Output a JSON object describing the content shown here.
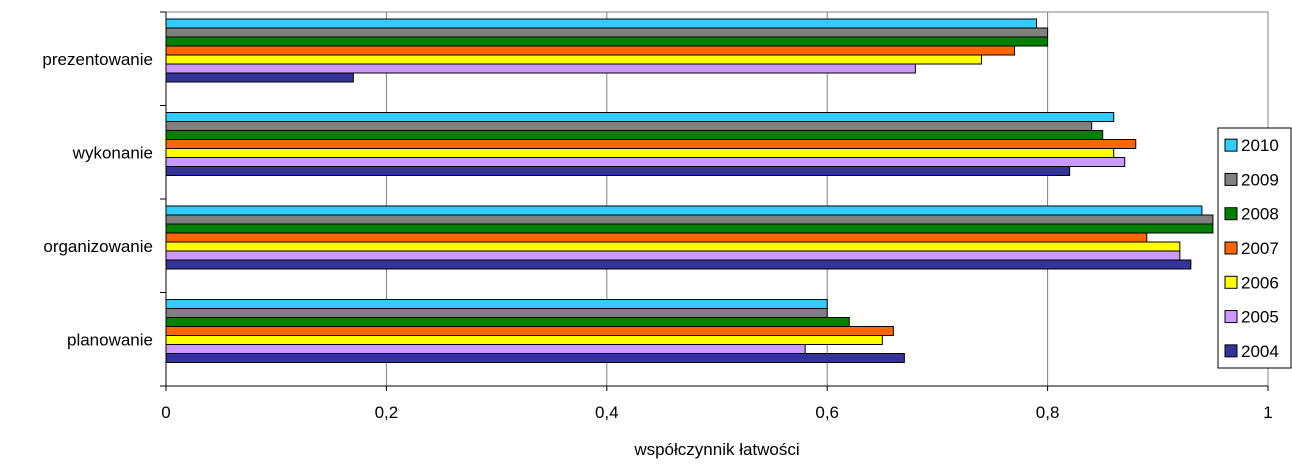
{
  "chart_data": {
    "type": "bar",
    "orientation": "horizontal",
    "title": "",
    "xlabel": "współczynnik łatwości",
    "ylabel": "",
    "xlim": [
      0,
      1
    ],
    "x_ticks": [
      "0",
      "0,2",
      "0,4",
      "0,6",
      "0,8",
      "1"
    ],
    "x_tick_values": [
      0,
      0.2,
      0.4,
      0.6,
      0.8,
      1
    ],
    "grid": "vertical",
    "legend_position": "right",
    "categories": [
      "prezentowanie",
      "wykonanie",
      "organizowanie",
      "planowanie"
    ],
    "series": [
      {
        "name": "2010",
        "color": "#33CCFF",
        "values": [
          0.79,
          0.86,
          0.94,
          0.6
        ]
      },
      {
        "name": "2009",
        "color": "#808080",
        "values": [
          0.8,
          0.84,
          0.95,
          0.6
        ]
      },
      {
        "name": "2008",
        "color": "#008000",
        "values": [
          0.8,
          0.85,
          0.95,
          0.62
        ]
      },
      {
        "name": "2007",
        "color": "#FF6600",
        "values": [
          0.77,
          0.88,
          0.89,
          0.66
        ]
      },
      {
        "name": "2006",
        "color": "#FFFF00",
        "values": [
          0.74,
          0.86,
          0.92,
          0.65
        ]
      },
      {
        "name": "2005",
        "color": "#CC99FF",
        "values": [
          0.68,
          0.87,
          0.92,
          0.58
        ]
      },
      {
        "name": "2004",
        "color": "#333399",
        "values": [
          0.17,
          0.82,
          0.93,
          0.67
        ]
      }
    ]
  }
}
